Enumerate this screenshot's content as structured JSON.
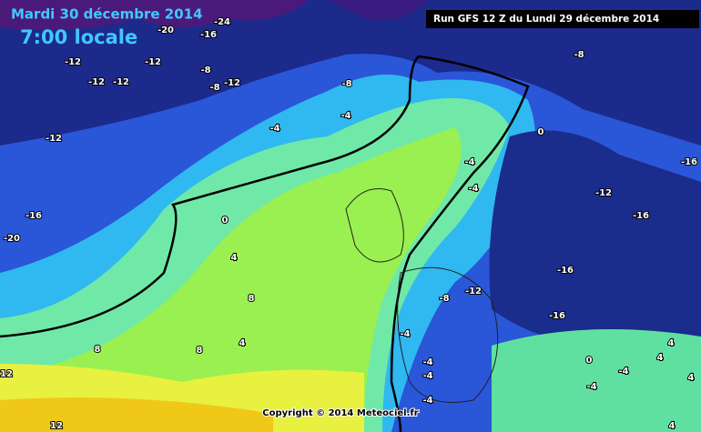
{
  "header": {
    "date": "Mardi 30 décembre 2014",
    "time": "7:00 locale",
    "run": "Run GFS 12 Z du Lundi 29 décembre 2014"
  },
  "footer": {
    "copyright": "Copyright © 2014 Meteociel.fr"
  },
  "contour_labels": [
    "-24",
    "-20",
    "-16",
    "-12",
    "-12",
    "-12",
    "-12",
    "-8",
    "-8",
    "-12",
    "-8",
    "-4",
    "-4",
    "-12",
    "-16",
    "-20",
    "0",
    "4",
    "8",
    "4",
    "8",
    "8",
    "12",
    "12",
    "-8",
    "0",
    "-4",
    "-4",
    "-12",
    "-16",
    "-16",
    "-16",
    "-16",
    "-12",
    "-8",
    "-4",
    "-4",
    "-4",
    "-4",
    "-4",
    "0",
    "-4",
    "4",
    "4",
    "4",
    "4"
  ]
}
